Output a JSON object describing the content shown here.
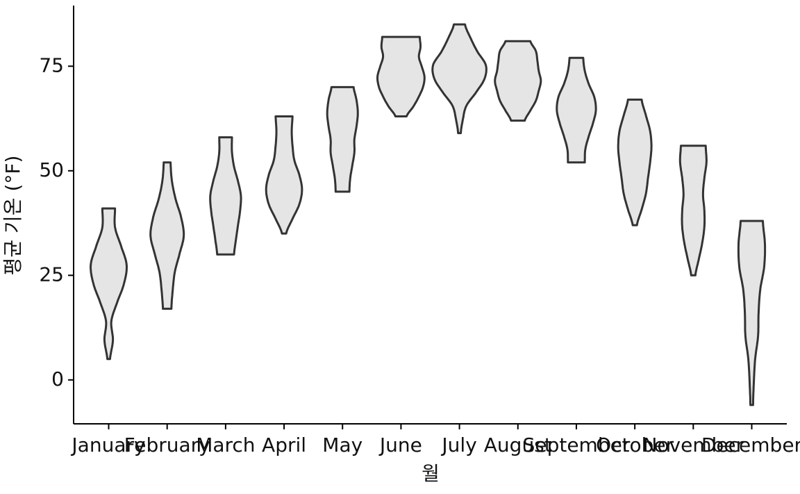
{
  "chart_data": {
    "type": "violin",
    "x_label": "월",
    "y_label": "평균 기온 (°F)",
    "categories": [
      "January",
      "February",
      "March",
      "April",
      "May",
      "June",
      "July",
      "August",
      "September",
      "October",
      "November",
      "December"
    ],
    "violins": [
      {
        "min": 5,
        "max": 41,
        "density": [
          0.05,
          0.16,
          0.1,
          0.32,
          0.58,
          0.68,
          0.47,
          0.24,
          0.24
        ]
      },
      {
        "min": 17,
        "max": 52,
        "density": [
          0.16,
          0.21,
          0.29,
          0.47,
          0.63,
          0.53,
          0.32,
          0.18,
          0.13
        ]
      },
      {
        "min": 30,
        "max": 58,
        "density": [
          0.32,
          0.39,
          0.47,
          0.55,
          0.58,
          0.47,
          0.32,
          0.24,
          0.24
        ]
      },
      {
        "min": 35,
        "max": 63,
        "density": [
          0.08,
          0.32,
          0.58,
          0.68,
          0.58,
          0.39,
          0.32,
          0.29,
          0.32
        ]
      },
      {
        "min": 45,
        "max": 70,
        "density": [
          0.26,
          0.29,
          0.37,
          0.45,
          0.45,
          0.53,
          0.58,
          0.53,
          0.42
        ]
      },
      {
        "min": 63,
        "max": 82,
        "density": [
          0.21,
          0.47,
          0.68,
          0.84,
          0.89,
          0.79,
          0.68,
          0.74,
          0.71
        ]
      },
      {
        "min": 59,
        "max": 85,
        "density": [
          0.05,
          0.13,
          0.26,
          0.63,
          0.95,
          1.0,
          0.68,
          0.42,
          0.21
        ]
      },
      {
        "min": 62,
        "max": 81,
        "density": [
          0.26,
          0.47,
          0.68,
          0.79,
          0.87,
          0.79,
          0.74,
          0.68,
          0.47
        ]
      },
      {
        "min": 52,
        "max": 77,
        "density": [
          0.32,
          0.34,
          0.47,
          0.63,
          0.74,
          0.68,
          0.47,
          0.32,
          0.26
        ]
      },
      {
        "min": 37,
        "max": 67,
        "density": [
          0.08,
          0.26,
          0.42,
          0.5,
          0.58,
          0.63,
          0.58,
          0.42,
          0.26
        ]
      },
      {
        "min": 25,
        "max": 56,
        "density": [
          0.08,
          0.21,
          0.34,
          0.42,
          0.42,
          0.37,
          0.42,
          0.5,
          0.47
        ]
      },
      {
        "min": -6,
        "max": 38,
        "density": [
          0.05,
          0.08,
          0.13,
          0.24,
          0.26,
          0.32,
          0.47,
          0.5,
          0.42
        ]
      }
    ],
    "fill": "#e5e5e5",
    "stroke": "#333333",
    "ylim": [
      -10.5,
      89.5
    ],
    "yticks": [
      0,
      25,
      50,
      75
    ]
  }
}
